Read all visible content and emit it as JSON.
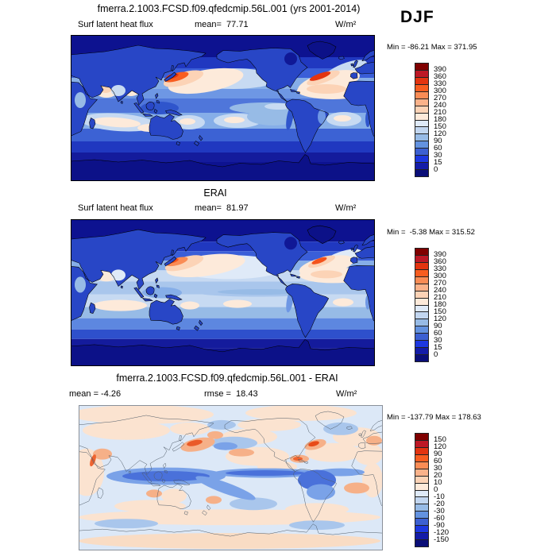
{
  "season": "DJF",
  "palette_top_to_bottom": [
    "#800000",
    "#bd1826",
    "#e33410",
    "#f85d20",
    "#fa8c55",
    "#fbb28a",
    "#fcd3b6",
    "#fdeada",
    "#dfeaf8",
    "#c2d6f0",
    "#97bbe6",
    "#6392e0",
    "#3c60d2",
    "#1d38e0",
    "#141ca8",
    "#0a0e78"
  ],
  "chart_data": [
    {
      "type": "heatmap",
      "panel": "top",
      "title": "fmerra.2.1003.FCSD.f09.qfedcmip.56L.001 (yrs 2001-2014)",
      "variable": "Surf latent heat flux",
      "units": "W/m²",
      "mean": 77.71,
      "min": -86.21,
      "max": 371.95,
      "mean_label": "mean=  77.71",
      "stats_label": "Min = -86.21 Max = 371.95",
      "levels": [
        0,
        15,
        30,
        60,
        90,
        120,
        150,
        180,
        210,
        240,
        270,
        300,
        330,
        360,
        390
      ],
      "colorbar_ticks": [
        "390",
        "360",
        "330",
        "300",
        "270",
        "240",
        "210",
        "180",
        "150",
        "120",
        "90",
        "60",
        "30",
        "15",
        "0"
      ],
      "projection": "global cylindrical equidistant, Pacific-centered",
      "legend_position": "right"
    },
    {
      "type": "heatmap",
      "panel": "middle",
      "title": "ERAI",
      "variable": "Surf latent heat flux",
      "units": "W/m²",
      "mean": 81.97,
      "min": -5.38,
      "max": 315.52,
      "mean_label": "mean=  81.97",
      "stats_label": "Min =  -5.38 Max = 315.52",
      "levels": [
        0,
        15,
        30,
        60,
        90,
        120,
        150,
        180,
        210,
        240,
        270,
        300,
        330,
        360,
        390
      ],
      "colorbar_ticks": [
        "390",
        "360",
        "330",
        "300",
        "270",
        "240",
        "210",
        "180",
        "150",
        "120",
        "90",
        "60",
        "30",
        "15",
        "0"
      ],
      "projection": "global cylindrical equidistant, Pacific-centered",
      "legend_position": "right"
    },
    {
      "type": "heatmap",
      "panel": "bottom",
      "title": "fmerra.2.1003.FCSD.f09.qfedcmip.56L.001 - ERAI",
      "variable": "Surf latent heat flux difference",
      "units": "W/m²",
      "mean": -4.26,
      "rmse": 18.43,
      "min": -137.79,
      "max": 178.63,
      "mean_label": "mean = -4.26",
      "rmse_label": "rmse =  18.43",
      "stats_label": "Min = -137.79 Max = 178.63",
      "levels": [
        -150,
        -120,
        -90,
        -60,
        -30,
        -20,
        -10,
        0,
        10,
        20,
        30,
        60,
        90,
        120,
        150
      ],
      "colorbar_ticks": [
        "150",
        "120",
        "90",
        "60",
        "30",
        "20",
        "10",
        "0",
        "-10",
        "-20",
        "-30",
        "-60",
        "-90",
        "-120",
        "-150"
      ],
      "projection": "global cylindrical equidistant, Pacific-centered",
      "legend_position": "right"
    }
  ]
}
